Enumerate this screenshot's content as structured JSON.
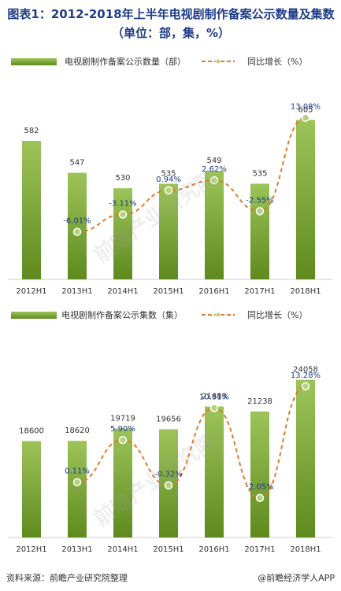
{
  "title": "图表1：2012-2018年上半年电视剧制作备案公示数量及集数（单位：部，集，%）",
  "source": "资料来源：前瞻产业研究院整理",
  "brand": "@前瞻经济学人APP",
  "watermark": "前瞻产业研究院",
  "colors": {
    "bar_top": "#9dc45a",
    "bar_bottom": "#5e8a1e",
    "line": "#e07a2a",
    "marker_fill": "#b5d37e"
  },
  "chart_data": [
    {
      "type": "bar",
      "categories": [
        "2012H1",
        "2013H1",
        "2014H1",
        "2015H1",
        "2016H1",
        "2017H1",
        "2018H1"
      ],
      "series": [
        {
          "name": "电视剧制作备案公示数量（部）",
          "type": "bar",
          "values": [
            582,
            547,
            530,
            535,
            549,
            535,
            605
          ],
          "labels": [
            "582",
            "547",
            "530",
            "535",
            "549",
            "535",
            "605"
          ]
        },
        {
          "name": "同比增长（%）",
          "type": "line",
          "values": [
            null,
            -6.01,
            -3.11,
            0.94,
            2.62,
            -2.55,
            13.08
          ],
          "labels": [
            "",
            "-6.01%",
            "-3.11%",
            "0.94%",
            "2.62%",
            "-2.55%",
            "13.08%"
          ]
        }
      ]
    },
    {
      "type": "bar",
      "categories": [
        "2012H1",
        "2013H1",
        "2014H1",
        "2015H1",
        "2016H1",
        "2017H1",
        "2018H1"
      ],
      "series": [
        {
          "name": "电视剧制作备案公示集数（集）",
          "type": "bar",
          "values": [
            18600,
            18620,
            19719,
            19656,
            21683,
            21238,
            24058
          ],
          "labels": [
            "18600",
            "18620",
            "19719",
            "19656",
            "21683",
            "21238",
            "24058"
          ]
        },
        {
          "name": "同比增长（%）",
          "type": "line",
          "values": [
            null,
            0.11,
            5.9,
            -0.32,
            10.31,
            -2.05,
            13.28
          ],
          "labels": [
            "",
            "0.11%",
            "5.90%",
            "-0.32%",
            "10.31%",
            "-2.05%",
            "13.28%"
          ]
        }
      ]
    }
  ]
}
